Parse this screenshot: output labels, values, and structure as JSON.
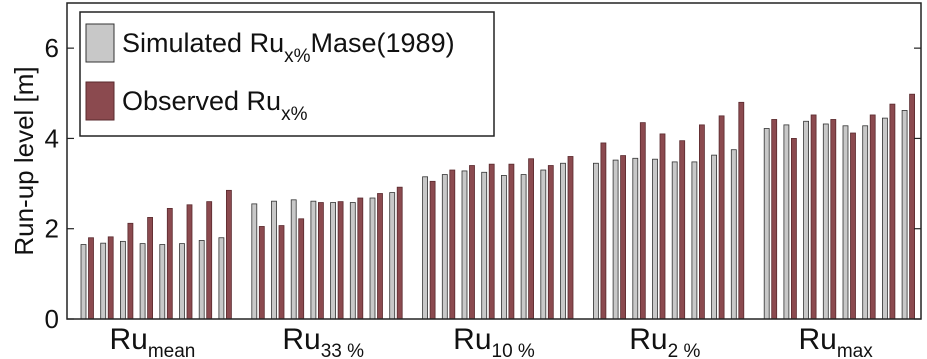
{
  "chart_data": {
    "type": "bar",
    "ylabel": "Run-up level [m]",
    "ylim": [
      0,
      7
    ],
    "yticks": [
      "0",
      "2",
      "4",
      "6"
    ],
    "groups": [
      {
        "main": "Ru",
        "sub": "mean"
      },
      {
        "main": "Ru",
        "sub": "33 %"
      },
      {
        "main": "Ru",
        "sub": "10 %"
      },
      {
        "main": "Ru",
        "sub": "2 %"
      },
      {
        "main": "Ru",
        "sub": "max"
      }
    ],
    "legend": [
      {
        "text": "Simulated Ru",
        "sub": "x%",
        "suffix": "Mase(1989)",
        "color": "#c8c8c8"
      },
      {
        "text": "Observed Ru",
        "sub": "x%",
        "suffix": "",
        "color": "#8b4a4f"
      }
    ],
    "colors": {
      "simulated": "#c8c8c8",
      "observed": "#8b4a4f"
    },
    "series": [
      {
        "key": "simulated",
        "values": [
          [
            1.65,
            1.68,
            1.72,
            1.67,
            1.65,
            1.67,
            1.74,
            1.8
          ],
          [
            2.55,
            2.61,
            2.64,
            2.61,
            2.58,
            2.58,
            2.68,
            2.8
          ],
          [
            3.15,
            3.2,
            3.28,
            3.25,
            3.18,
            3.2,
            3.3,
            3.45
          ],
          [
            3.45,
            3.52,
            3.56,
            3.54,
            3.48,
            3.48,
            3.63,
            3.75
          ],
          [
            4.22,
            4.3,
            4.38,
            4.32,
            4.28,
            4.28,
            4.45,
            4.62
          ]
        ]
      },
      {
        "key": "observed",
        "values": [
          [
            1.8,
            1.82,
            2.12,
            2.25,
            2.45,
            2.53,
            2.6,
            2.85
          ],
          [
            2.05,
            2.07,
            2.22,
            2.58,
            2.6,
            2.68,
            2.78,
            2.92
          ],
          [
            3.05,
            3.3,
            3.4,
            3.43,
            3.43,
            3.55,
            3.4,
            3.6
          ],
          [
            3.9,
            3.62,
            4.35,
            4.1,
            3.95,
            4.3,
            4.5,
            4.8
          ],
          [
            4.42,
            4.0,
            4.52,
            4.42,
            4.12,
            4.52,
            4.76,
            4.98
          ]
        ]
      }
    ]
  }
}
